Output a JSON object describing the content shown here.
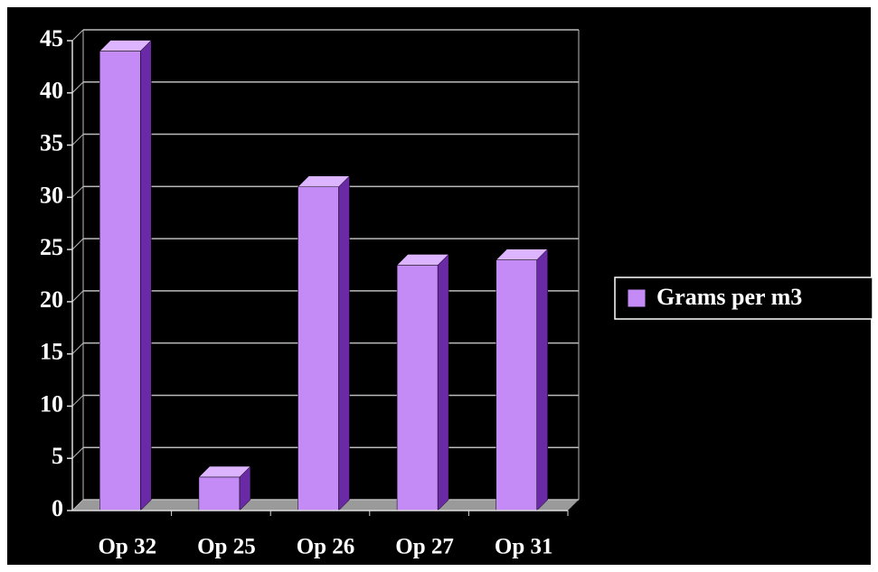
{
  "chart_data": {
    "type": "bar",
    "categories": [
      "Op 32",
      "Op 25",
      "Op 26",
      "Op 27",
      "Op 31"
    ],
    "series": [
      {
        "name": "Grams per m3",
        "color": "#c48bf7",
        "values": [
          44,
          3.2,
          31,
          23.5,
          24
        ]
      }
    ],
    "ylim": [
      0,
      45
    ],
    "yticks": [
      0,
      5,
      10,
      15,
      20,
      25,
      30,
      35,
      40,
      45
    ],
    "grid": true,
    "legend": "right"
  }
}
